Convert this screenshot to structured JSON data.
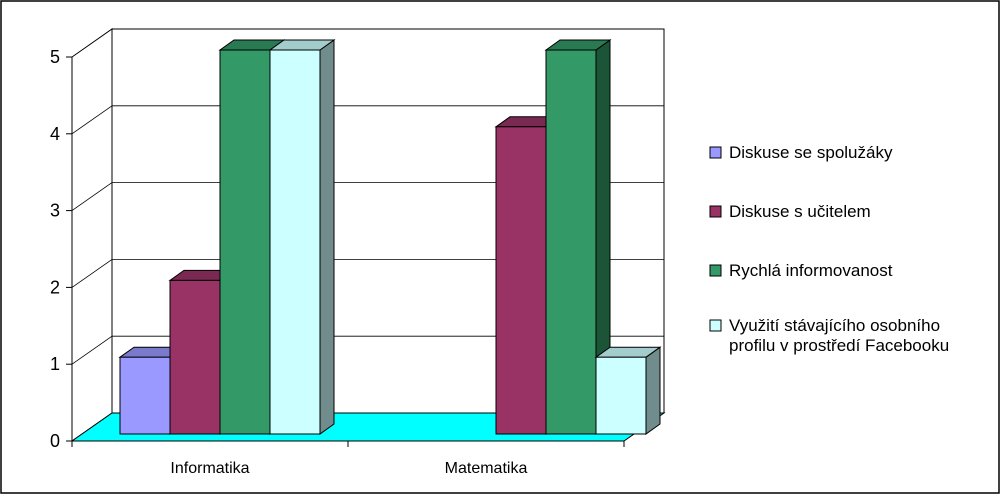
{
  "chart_data": {
    "type": "bar",
    "variant": "3d-clustered",
    "title": "",
    "xlabel": "",
    "ylabel": "",
    "categories": [
      "Informatika",
      "Matematika"
    ],
    "ylim": [
      0,
      5
    ],
    "yticks": [
      "0",
      "1",
      "2",
      "3",
      "4",
      "5"
    ],
    "grid": true,
    "legend_position": "right",
    "series": [
      {
        "name": "Diskuse se spolužáky",
        "values": [
          1,
          0
        ],
        "color": "#9999ff"
      },
      {
        "name": "Diskuse s učitelem",
        "values": [
          2,
          4
        ],
        "color": "#993366"
      },
      {
        "name": "Rychlá informovanost",
        "values": [
          5,
          5
        ],
        "color": "#339966"
      },
      {
        "name": "Využití stávajícího osobního profilu v prostředí Facebooku",
        "values": [
          5,
          1
        ],
        "color": "#ccffff"
      }
    ],
    "floor_color": "#00ffff"
  },
  "legend": {
    "items": [
      {
        "lines": [
          "Diskuse se spolužáky"
        ]
      },
      {
        "lines": [
          "Diskuse s učitelem"
        ]
      },
      {
        "lines": [
          "Rychlá informovanost"
        ]
      },
      {
        "lines": [
          "Využití stávajícího osobního",
          "profilu v prostředí Facebooku"
        ]
      }
    ]
  }
}
